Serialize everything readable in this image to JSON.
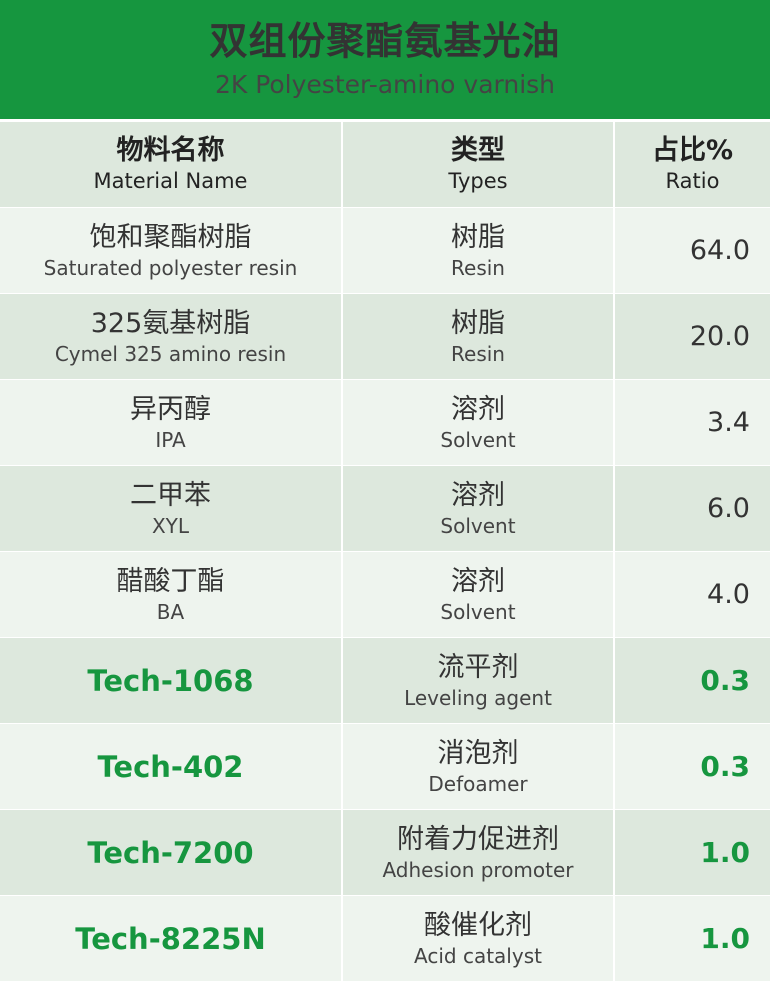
{
  "header": {
    "title_zh": "双组份聚酯氨基光油",
    "title_en": "2K Polyester-amino varnish"
  },
  "columns": [
    {
      "zh": "物料名称",
      "en": "Material Name"
    },
    {
      "zh": "类型",
      "en": "Types"
    },
    {
      "zh": "占比%",
      "en": "Ratio"
    }
  ],
  "rows": [
    {
      "name_zh": "饱和聚酯树脂",
      "name_en": "Saturated polyester resin",
      "type_zh": "树脂",
      "type_en": "Resin",
      "ratio": "64.0"
    },
    {
      "name_zh": "325氨基树脂",
      "name_en": "Cymel 325 amino resin",
      "type_zh": "树脂",
      "type_en": "Resin",
      "ratio": "20.0"
    },
    {
      "name_zh": "异丙醇",
      "name_en": "IPA",
      "type_zh": "溶剂",
      "type_en": "Solvent",
      "ratio": "3.4"
    },
    {
      "name_zh": "二甲苯",
      "name_en": "XYL",
      "type_zh": "溶剂",
      "type_en": "Solvent",
      "ratio": "6.0"
    },
    {
      "name_zh": "醋酸丁酯",
      "name_en": "BA",
      "type_zh": "溶剂",
      "type_en": "Solvent",
      "ratio": "4.0"
    },
    {
      "product": "Tech-1068",
      "type_zh": "流平剂",
      "type_en": "Leveling agent",
      "ratio": "0.3"
    },
    {
      "product": "Tech-402",
      "type_zh": "消泡剂",
      "type_en": "Defoamer",
      "ratio": "0.3"
    },
    {
      "product": "Tech-7200",
      "type_zh": "附着力促进剂",
      "type_en": "Adhesion promoter",
      "ratio": "1.0"
    },
    {
      "product": "Tech-8225N",
      "type_zh": "酸催化剂",
      "type_en": "Acid catalyst",
      "ratio": "1.0"
    }
  ],
  "colors": {
    "accent": "#16963f"
  }
}
